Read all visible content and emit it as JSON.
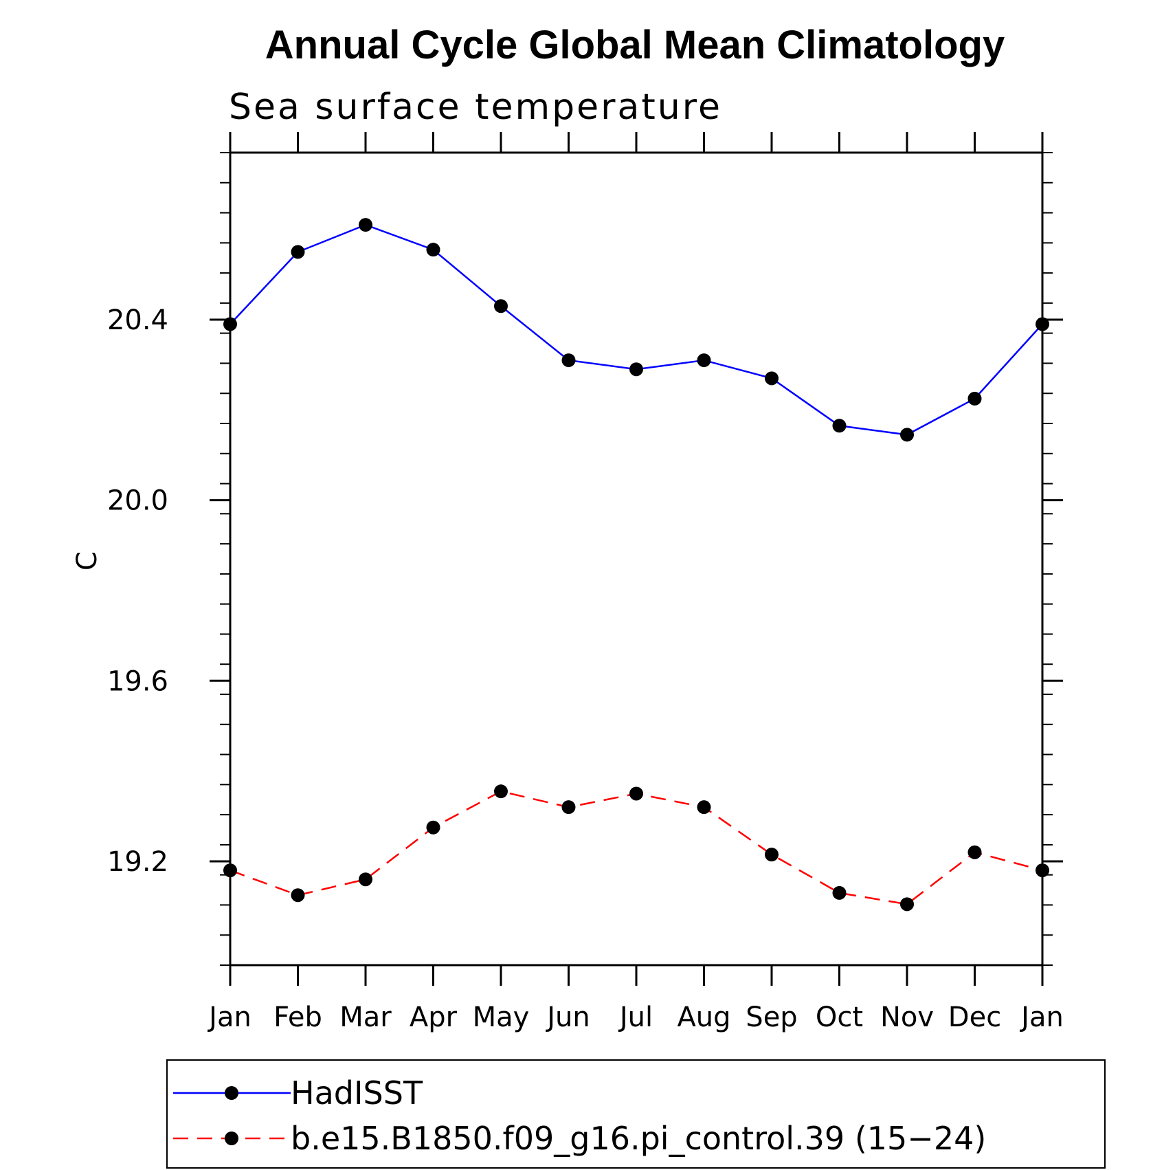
{
  "chart_data": {
    "type": "line",
    "title": "Annual Cycle Global Mean Climatology",
    "subtitle": "Sea surface temperature",
    "ylabel": "C",
    "xlabel": "",
    "categories": [
      "Jan",
      "Feb",
      "Mar",
      "Apr",
      "May",
      "Jun",
      "Jul",
      "Aug",
      "Sep",
      "Oct",
      "Nov",
      "Dec",
      "Jan"
    ],
    "ylim": [
      18.97,
      20.77
    ],
    "yticks": [
      "20.4",
      "20.0",
      "19.6",
      "19.2"
    ],
    "grid": false,
    "legend_position": "bottom",
    "series": [
      {
        "name": "HadISST",
        "color": "#0000ff",
        "line_style": "solid",
        "marker": "filled-circle",
        "values": [
          20.39,
          20.55,
          20.61,
          20.555,
          20.43,
          20.31,
          20.29,
          20.31,
          20.27,
          20.165,
          20.145,
          20.225,
          20.39
        ]
      },
      {
        "name": "b.e15.B1850.f09_g16.pi_control.39 (15−24)",
        "color": "#ff0000",
        "line_style": "dashed",
        "marker": "filled-circle",
        "values": [
          19.18,
          19.125,
          19.16,
          19.275,
          19.355,
          19.32,
          19.35,
          19.32,
          19.215,
          19.13,
          19.105,
          19.22,
          19.18
        ]
      }
    ]
  }
}
